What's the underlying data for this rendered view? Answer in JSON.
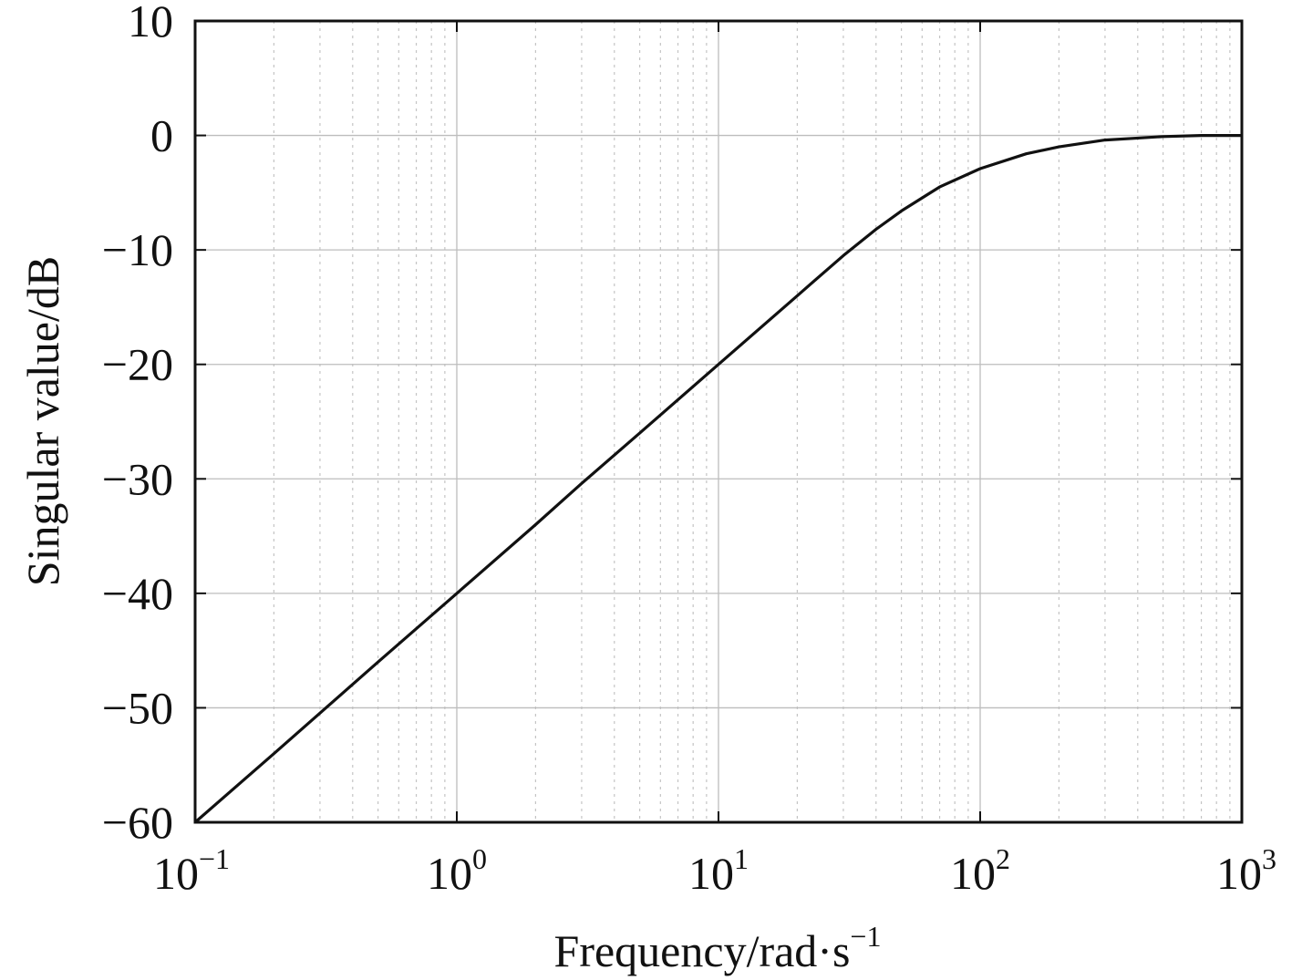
{
  "chart_data": {
    "type": "line",
    "title": "",
    "xlabel": "Frequency/rad·s",
    "xlabel_sup": "−1",
    "ylabel": "Singular value/dB",
    "xscale": "log",
    "xlim": [
      0.1,
      1000
    ],
    "ylim": [
      -60,
      10
    ],
    "grid": true,
    "legend": "none",
    "x_ticks": [
      {
        "value": 0.1,
        "base": "10",
        "exp": "−1"
      },
      {
        "value": 1,
        "base": "10",
        "exp": "0"
      },
      {
        "value": 10,
        "base": "10",
        "exp": "1"
      },
      {
        "value": 100,
        "base": "10",
        "exp": "2"
      },
      {
        "value": 1000,
        "base": "10",
        "exp": "3"
      }
    ],
    "y_ticks": [
      {
        "value": 10,
        "label": "10"
      },
      {
        "value": 0,
        "label": "0"
      },
      {
        "value": -10,
        "label": "−10"
      },
      {
        "value": -20,
        "label": "−20"
      },
      {
        "value": -30,
        "label": "−30"
      },
      {
        "value": -40,
        "label": "−40"
      },
      {
        "value": -50,
        "label": "−50"
      },
      {
        "value": -60,
        "label": "−60"
      }
    ],
    "series": [
      {
        "color": "#111111",
        "x": [
          0.1,
          0.2,
          0.5,
          1,
          2,
          3,
          5,
          10,
          20,
          30,
          40,
          50,
          70,
          100,
          150,
          200,
          300,
          500,
          700,
          1000
        ],
        "y": [
          -60,
          -54,
          -46,
          -40,
          -34,
          -30.4,
          -26,
          -20,
          -14,
          -10.5,
          -8.2,
          -6.6,
          -4.5,
          -2.9,
          -1.6,
          -1.0,
          -0.4,
          -0.1,
          0,
          0
        ]
      }
    ]
  }
}
